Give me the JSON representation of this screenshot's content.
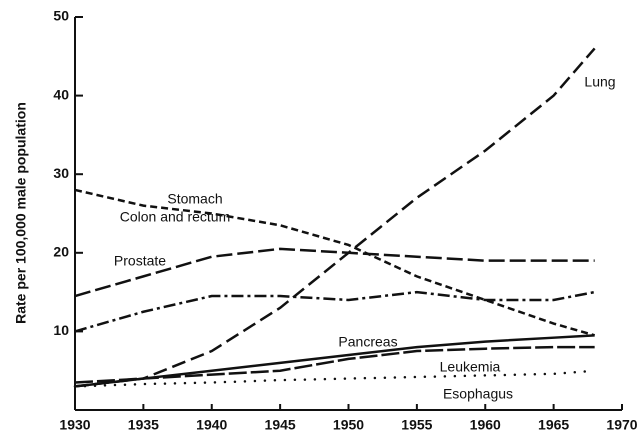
{
  "chart_data": {
    "type": "line",
    "ylabel": "Rate per 100,000 male population",
    "x": [
      1930,
      1935,
      1940,
      1945,
      1950,
      1955,
      1960,
      1965,
      1968
    ],
    "xlim": [
      1930,
      1970
    ],
    "xticks": [
      1930,
      1935,
      1940,
      1945,
      1950,
      1955,
      1960,
      1965,
      1970
    ],
    "ylim": [
      0,
      50
    ],
    "yticks": [
      10,
      20,
      30,
      40,
      50
    ],
    "grid": false,
    "series": [
      {
        "name": "Lung",
        "color": "#111111",
        "dash": "14 6",
        "values": [
          3,
          4,
          7.5,
          13,
          20,
          27,
          33,
          40,
          46
        ]
      },
      {
        "name": "Stomach",
        "color": "#111111",
        "dash": "7 4",
        "values": [
          28,
          26,
          25,
          23.5,
          21,
          17,
          14,
          11,
          9.5
        ]
      },
      {
        "name": "Colon and rectum",
        "color": "#111111",
        "dash": "16 5",
        "values": [
          14.5,
          17,
          19.5,
          20.5,
          20,
          19.5,
          19,
          19,
          19
        ]
      },
      {
        "name": "Prostate",
        "color": "#111111",
        "dash": "12 4 3 4",
        "values": [
          10,
          12.5,
          14.5,
          14.5,
          14,
          15,
          14,
          14,
          15
        ]
      },
      {
        "name": "Pancreas",
        "color": "#111111",
        "dash": "none",
        "values": [
          3,
          4,
          5,
          6,
          7,
          8,
          8.7,
          9.2,
          9.5
        ]
      },
      {
        "name": "Leukemia",
        "color": "#111111",
        "dash": "18 4",
        "values": [
          3.5,
          4,
          4.5,
          5,
          6.5,
          7.5,
          7.8,
          8,
          8
        ]
      },
      {
        "name": "Esophagus",
        "color": "#111111",
        "dash": "0 10",
        "values": [
          3,
          3.3,
          3.5,
          3.8,
          4,
          4.2,
          4.4,
          4.6,
          5
        ]
      }
    ]
  }
}
